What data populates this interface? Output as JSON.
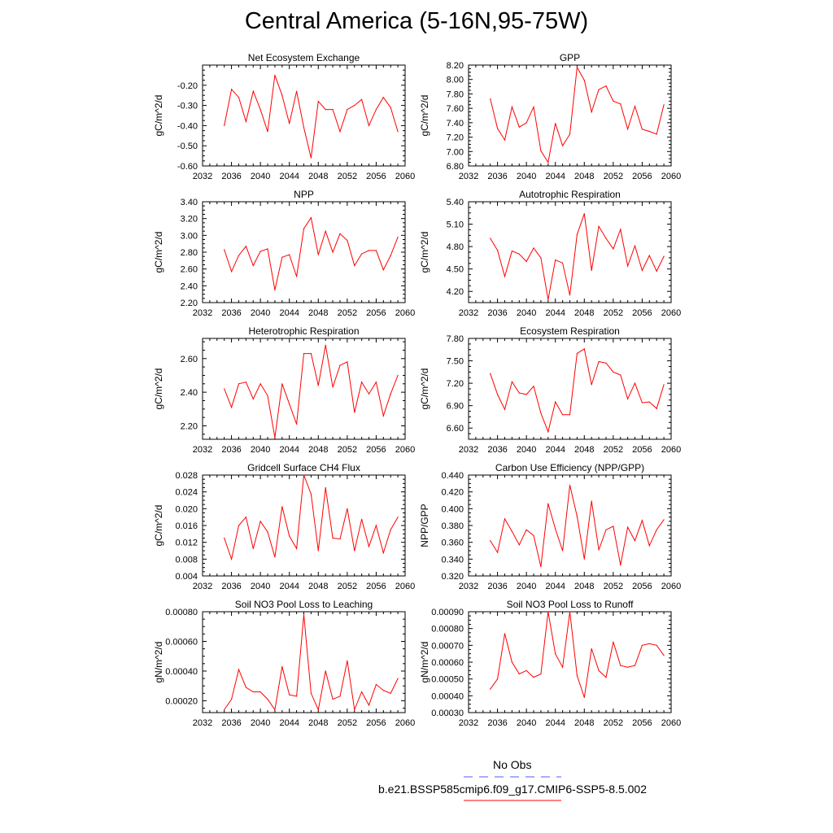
{
  "title": "Central America (5-16N,95-75W)",
  "colors": {
    "series": "#ff0000",
    "obs": "#5555ff",
    "axis": "#000000"
  },
  "legend": {
    "obs_label": "No Obs",
    "series_label": "b.e21.BSSP585cmip6.f09_g17.CMIP6-SSP5-8.5.002"
  },
  "chart_data": [
    {
      "type": "line",
      "title": "Net Ecosystem Exchange",
      "ylabel": "gC/m^2/d",
      "xlim": [
        2032,
        2060
      ],
      "ylim": [
        -0.6,
        -0.1
      ],
      "xticks": [
        "2032",
        "2036",
        "2040",
        "2044",
        "2048",
        "2052",
        "2056",
        "2060"
      ],
      "yticks": [
        "-0.60",
        "-0.50",
        "-0.40",
        "-0.30",
        "-0.20"
      ],
      "x": [
        2035,
        2036,
        2037,
        2038,
        2039,
        2040,
        2041,
        2042,
        2043,
        2044,
        2045,
        2046,
        2047,
        2048,
        2049,
        2050,
        2051,
        2052,
        2053,
        2054,
        2055,
        2056,
        2057,
        2058,
        2059
      ],
      "values": [
        -0.4,
        -0.22,
        -0.26,
        -0.38,
        -0.23,
        -0.32,
        -0.43,
        -0.15,
        -0.25,
        -0.39,
        -0.23,
        -0.41,
        -0.56,
        -0.28,
        -0.32,
        -0.32,
        -0.43,
        -0.32,
        -0.3,
        -0.27,
        -0.4,
        -0.32,
        -0.26,
        -0.31,
        -0.43
      ]
    },
    {
      "type": "line",
      "title": "GPP",
      "ylabel": "gC/m^2/d",
      "xlim": [
        2032,
        2060
      ],
      "ylim": [
        6.8,
        8.2
      ],
      "xticks": [
        "2032",
        "2036",
        "2040",
        "2044",
        "2048",
        "2052",
        "2056",
        "2060"
      ],
      "yticks": [
        "6.80",
        "7.00",
        "7.20",
        "7.40",
        "7.60",
        "7.80",
        "8.00",
        "8.20"
      ],
      "x": [
        2035,
        2036,
        2037,
        2038,
        2039,
        2040,
        2041,
        2042,
        2043,
        2044,
        2045,
        2046,
        2047,
        2048,
        2049,
        2050,
        2051,
        2052,
        2053,
        2054,
        2055,
        2056,
        2057,
        2058,
        2059
      ],
      "values": [
        7.73,
        7.32,
        7.16,
        7.62,
        7.34,
        7.4,
        7.62,
        7.01,
        6.85,
        7.39,
        7.08,
        7.24,
        8.17,
        7.99,
        7.55,
        7.86,
        7.91,
        7.7,
        7.66,
        7.31,
        7.63,
        7.31,
        7.28,
        7.24,
        7.65
      ]
    },
    {
      "type": "line",
      "title": "NPP",
      "ylabel": "gC/m^2/d",
      "xlim": [
        2032,
        2060
      ],
      "ylim": [
        2.2,
        3.4
      ],
      "xticks": [
        "2032",
        "2036",
        "2040",
        "2044",
        "2048",
        "2052",
        "2056",
        "2060"
      ],
      "yticks": [
        "2.20",
        "2.40",
        "2.60",
        "2.80",
        "3.00",
        "3.20",
        "3.40"
      ],
      "x": [
        2035,
        2036,
        2037,
        2038,
        2039,
        2040,
        2041,
        2042,
        2043,
        2044,
        2045,
        2046,
        2047,
        2048,
        2049,
        2050,
        2051,
        2052,
        2053,
        2054,
        2055,
        2056,
        2057,
        2058,
        2059
      ],
      "values": [
        2.83,
        2.57,
        2.76,
        2.87,
        2.64,
        2.81,
        2.84,
        2.35,
        2.74,
        2.77,
        2.51,
        3.08,
        3.21,
        2.77,
        3.05,
        2.8,
        3.02,
        2.94,
        2.64,
        2.78,
        2.82,
        2.82,
        2.59,
        2.76,
        2.98
      ]
    },
    {
      "type": "line",
      "title": "Autotrophic Respiration",
      "ylabel": "gC/m^2/d",
      "xlim": [
        2032,
        2060
      ],
      "ylim": [
        4.05,
        5.4
      ],
      "xticks": [
        "2032",
        "2036",
        "2040",
        "2044",
        "2048",
        "2052",
        "2056",
        "2060"
      ],
      "yticks": [
        "4.20",
        "4.50",
        "4.80",
        "5.10",
        "5.40"
      ],
      "x": [
        2035,
        2036,
        2037,
        2038,
        2039,
        2040,
        2041,
        2042,
        2043,
        2044,
        2045,
        2046,
        2047,
        2048,
        2049,
        2050,
        2051,
        2052,
        2053,
        2054,
        2055,
        2056,
        2057,
        2058,
        2059
      ],
      "values": [
        4.91,
        4.75,
        4.4,
        4.74,
        4.7,
        4.6,
        4.78,
        4.65,
        4.09,
        4.62,
        4.58,
        4.15,
        4.96,
        5.24,
        4.48,
        5.07,
        4.91,
        4.77,
        5.03,
        4.54,
        4.81,
        4.48,
        4.68,
        4.47,
        4.67
      ]
    },
    {
      "type": "line",
      "title": "Heterotrophic Respiration",
      "ylabel": "gC/m^2/d",
      "xlim": [
        2032,
        2060
      ],
      "ylim": [
        2.12,
        2.72
      ],
      "xticks": [
        "2032",
        "2036",
        "2040",
        "2044",
        "2048",
        "2052",
        "2056",
        "2060"
      ],
      "yticks": [
        "2.20",
        "2.40",
        "2.60"
      ],
      "x": [
        2035,
        2036,
        2037,
        2038,
        2039,
        2040,
        2041,
        2042,
        2043,
        2044,
        2045,
        2046,
        2047,
        2048,
        2049,
        2050,
        2051,
        2052,
        2053,
        2054,
        2055,
        2056,
        2057,
        2058,
        2059
      ],
      "values": [
        2.42,
        2.31,
        2.45,
        2.46,
        2.36,
        2.45,
        2.38,
        2.13,
        2.45,
        2.33,
        2.21,
        2.63,
        2.63,
        2.44,
        2.68,
        2.43,
        2.56,
        2.58,
        2.28,
        2.46,
        2.39,
        2.46,
        2.26,
        2.39,
        2.5
      ]
    },
    {
      "type": "line",
      "title": "Ecosystem Respiration",
      "ylabel": "gC/m^2/d",
      "xlim": [
        2032,
        2060
      ],
      "ylim": [
        6.45,
        7.8
      ],
      "xticks": [
        "2032",
        "2036",
        "2040",
        "2044",
        "2048",
        "2052",
        "2056",
        "2060"
      ],
      "yticks": [
        "6.60",
        "6.90",
        "7.20",
        "7.50",
        "7.80"
      ],
      "x": [
        2035,
        2036,
        2037,
        2038,
        2039,
        2040,
        2041,
        2042,
        2043,
        2044,
        2045,
        2046,
        2047,
        2048,
        2049,
        2050,
        2051,
        2052,
        2053,
        2054,
        2055,
        2056,
        2057,
        2058,
        2059
      ],
      "values": [
        7.33,
        7.05,
        6.85,
        7.22,
        7.07,
        7.05,
        7.16,
        6.8,
        6.55,
        6.95,
        6.78,
        6.78,
        7.6,
        7.66,
        7.18,
        7.49,
        7.47,
        7.35,
        7.31,
        6.99,
        7.2,
        6.94,
        6.95,
        6.86,
        7.18
      ]
    },
    {
      "type": "line",
      "title": "Gridcell Surface CH4 Flux",
      "ylabel": "gC/m^2/d",
      "xlim": [
        2032,
        2060
      ],
      "ylim": [
        0.004,
        0.028
      ],
      "xticks": [
        "2032",
        "2036",
        "2040",
        "2044",
        "2048",
        "2052",
        "2056",
        "2060"
      ],
      "yticks": [
        "0.004",
        "0.008",
        "0.012",
        "0.016",
        "0.020",
        "0.024",
        "0.028"
      ],
      "x": [
        2035,
        2036,
        2037,
        2038,
        2039,
        2040,
        2041,
        2042,
        2043,
        2044,
        2045,
        2046,
        2047,
        2048,
        2049,
        2050,
        2051,
        2052,
        2053,
        2054,
        2055,
        2056,
        2057,
        2058,
        2059
      ],
      "values": [
        0.013,
        0.008,
        0.016,
        0.018,
        0.0105,
        0.017,
        0.0145,
        0.0085,
        0.0205,
        0.0135,
        0.0105,
        0.028,
        0.0235,
        0.01,
        0.025,
        0.013,
        0.0128,
        0.02,
        0.01,
        0.0175,
        0.011,
        0.016,
        0.0095,
        0.015,
        0.018
      ]
    },
    {
      "type": "line",
      "title": "Carbon Use Efficiency (NPP/GPP)",
      "ylabel": "NPP/GPP",
      "xlim": [
        2032,
        2060
      ],
      "ylim": [
        0.32,
        0.44
      ],
      "xticks": [
        "2032",
        "2036",
        "2040",
        "2044",
        "2048",
        "2052",
        "2056",
        "2060"
      ],
      "yticks": [
        "0.320",
        "0.340",
        "0.360",
        "0.380",
        "0.400",
        "0.420",
        "0.440"
      ],
      "x": [
        2035,
        2036,
        2037,
        2038,
        2039,
        2040,
        2041,
        2042,
        2043,
        2044,
        2045,
        2046,
        2047,
        2048,
        2049,
        2050,
        2051,
        2052,
        2053,
        2054,
        2055,
        2056,
        2057,
        2058,
        2059
      ],
      "values": [
        0.362,
        0.348,
        0.388,
        0.373,
        0.357,
        0.375,
        0.368,
        0.331,
        0.406,
        0.376,
        0.35,
        0.428,
        0.391,
        0.34,
        0.409,
        0.351,
        0.375,
        0.379,
        0.333,
        0.378,
        0.362,
        0.386,
        0.356,
        0.375,
        0.387
      ]
    },
    {
      "type": "line",
      "title": "Soil NO3 Pool Loss to Leaching",
      "ylabel": "gN/m^2/d",
      "xlim": [
        2032,
        2060
      ],
      "ylim": [
        0.00012,
        0.0008
      ],
      "xticks": [
        "2032",
        "2036",
        "2040",
        "2044",
        "2048",
        "2052",
        "2056",
        "2060"
      ],
      "yticks": [
        "0.00020",
        "0.00040",
        "0.00060",
        "0.00080"
      ],
      "x": [
        2035,
        2036,
        2037,
        2038,
        2039,
        2040,
        2041,
        2042,
        2043,
        2044,
        2045,
        2046,
        2047,
        2048,
        2049,
        2050,
        2051,
        2052,
        2053,
        2054,
        2055,
        2056,
        2057,
        2058,
        2059
      ],
      "values": [
        0.00014,
        0.00021,
        0.00041,
        0.00029,
        0.00026,
        0.00026,
        0.00021,
        0.00014,
        0.00043,
        0.00024,
        0.00023,
        0.00078,
        0.00025,
        0.00014,
        0.0004,
        0.00021,
        0.00023,
        0.00047,
        0.00014,
        0.00026,
        0.00017,
        0.00031,
        0.00027,
        0.00025,
        0.00035
      ]
    },
    {
      "type": "line",
      "title": "Soil NO3 Pool Loss to Runoff",
      "ylabel": "gN/m^2/d",
      "xlim": [
        2032,
        2060
      ],
      "ylim": [
        0.0003,
        0.0009
      ],
      "xticks": [
        "2032",
        "2036",
        "2040",
        "2044",
        "2048",
        "2052",
        "2056",
        "2060"
      ],
      "yticks": [
        "0.00030",
        "0.00040",
        "0.00050",
        "0.00060",
        "0.00070",
        "0.00080",
        "0.00090"
      ],
      "x": [
        2035,
        2036,
        2037,
        2038,
        2039,
        2040,
        2041,
        2042,
        2043,
        2044,
        2045,
        2046,
        2047,
        2048,
        2049,
        2050,
        2051,
        2052,
        2053,
        2054,
        2055,
        2056,
        2057,
        2058,
        2059
      ],
      "values": [
        0.00044,
        0.0005,
        0.00077,
        0.0006,
        0.00053,
        0.00055,
        0.00051,
        0.00053,
        0.0009,
        0.00065,
        0.00057,
        0.0009,
        0.00052,
        0.00039,
        0.00068,
        0.00055,
        0.00051,
        0.00072,
        0.00058,
        0.00057,
        0.00058,
        0.0007,
        0.00071,
        0.0007,
        0.00064
      ]
    }
  ]
}
